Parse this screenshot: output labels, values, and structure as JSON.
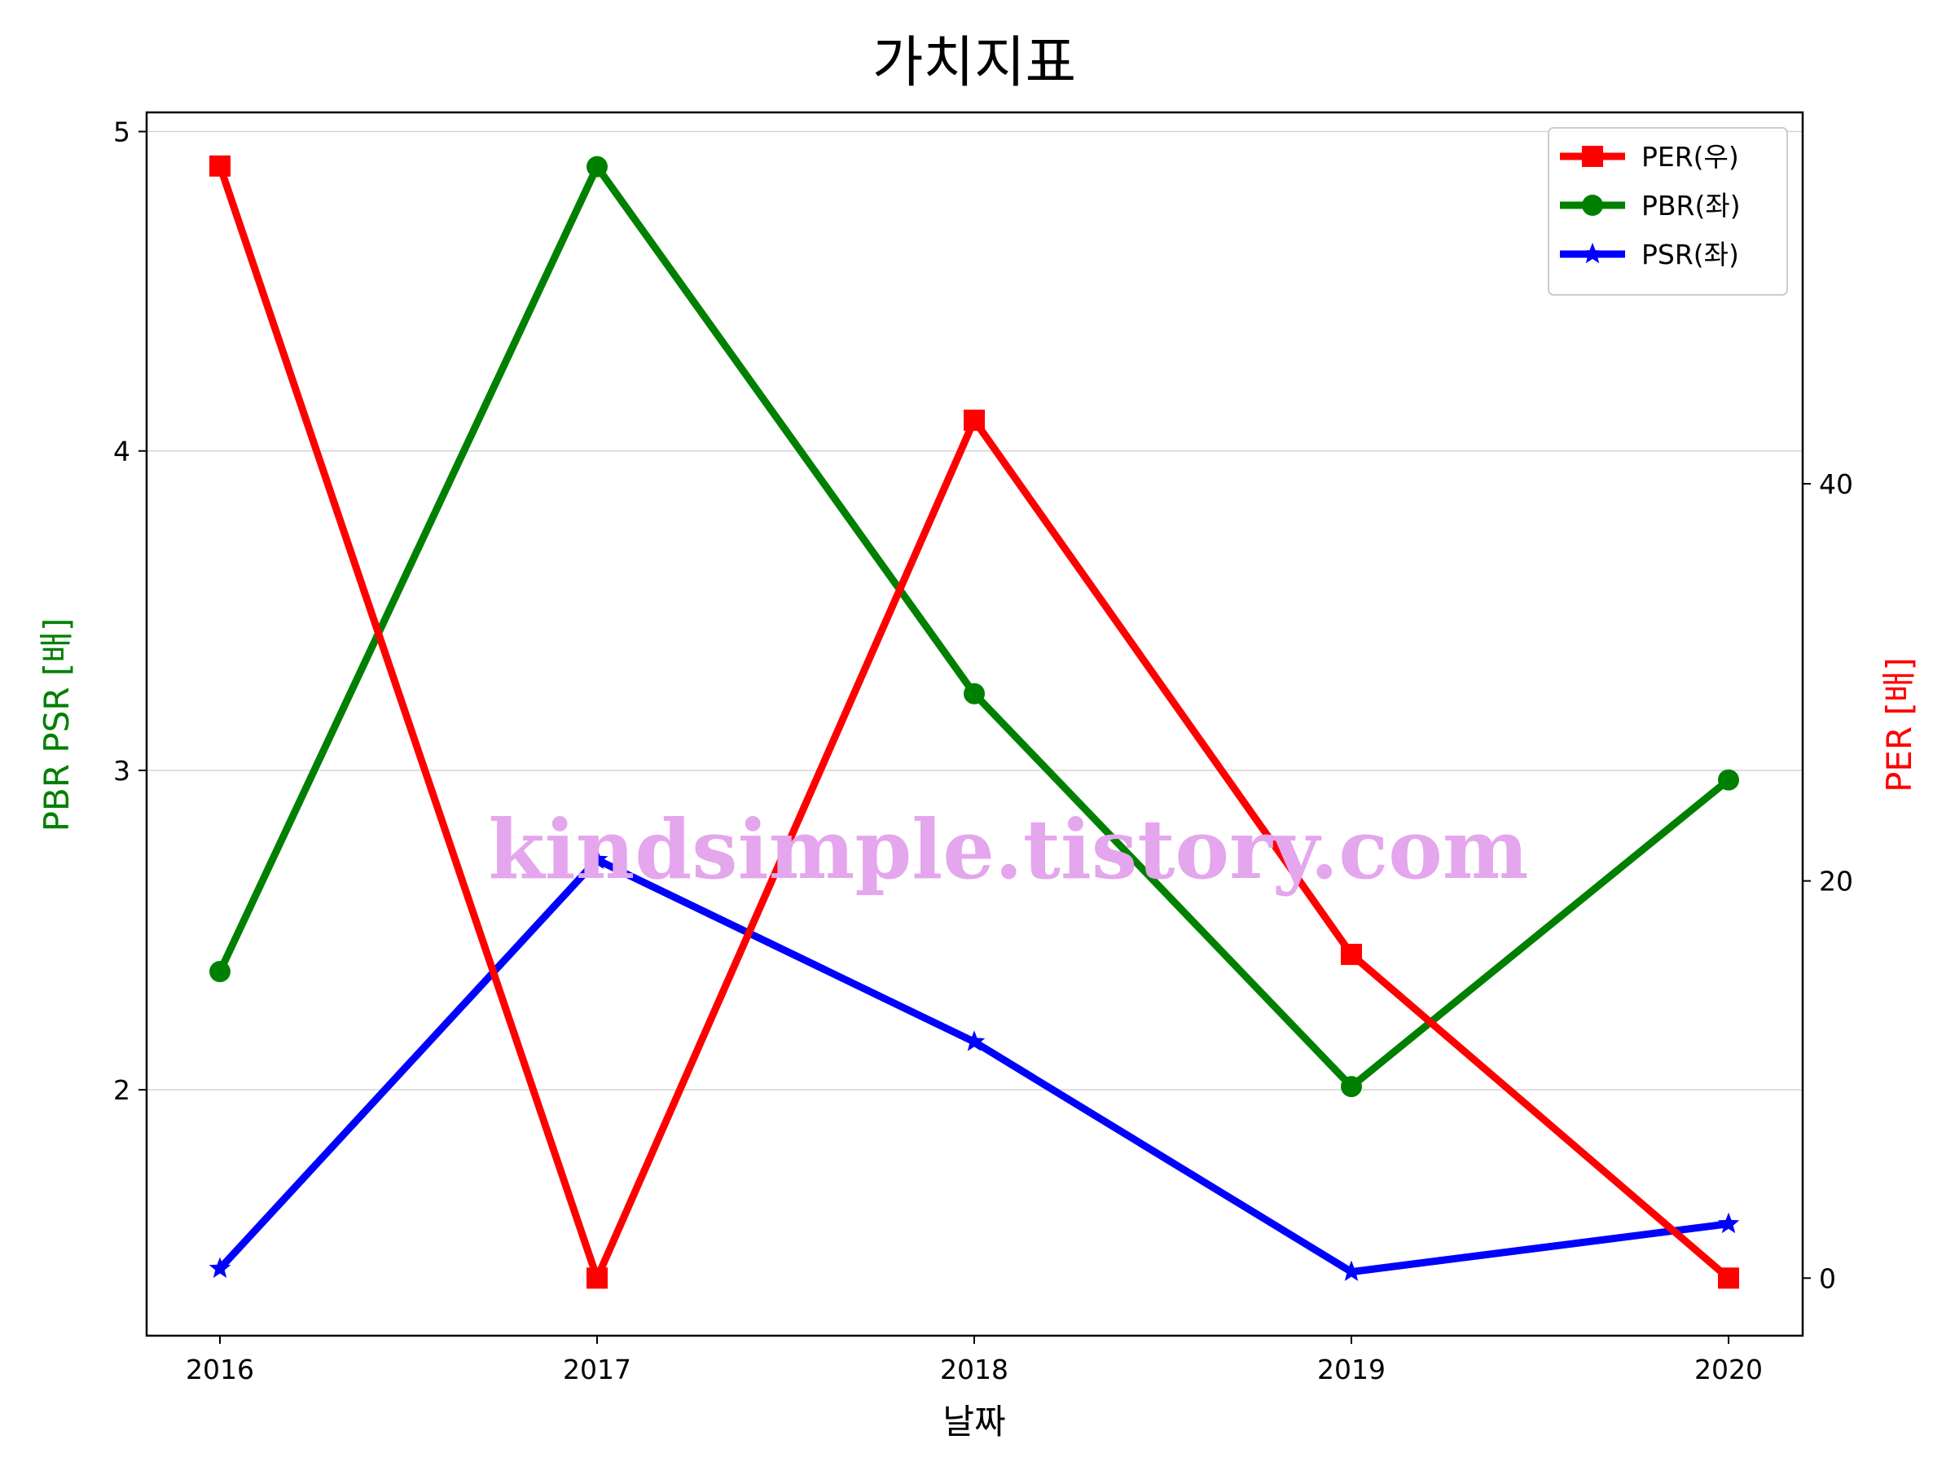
{
  "chart_data": {
    "type": "line",
    "title": "가치지표",
    "xlabel": "날짜",
    "ylabel_left": "PBR PSR [배]",
    "ylabel_right": "PER [배]",
    "categories": [
      "2016",
      "2017",
      "2018",
      "2019",
      "2020"
    ],
    "ylim_left": [
      1.23,
      5.06
    ],
    "yticks_left": [
      2,
      3,
      4,
      5
    ],
    "ylim_right": [
      -2.9,
      58.7
    ],
    "yticks_right": [
      0,
      20,
      40
    ],
    "grid": "horizontal",
    "legend_position": "top-right",
    "series": [
      {
        "name": "PER(우)",
        "axis": "right",
        "color": "#ff0000",
        "marker": "square",
        "values": [
          56.0,
          0.0,
          43.2,
          16.3,
          0.0
        ]
      },
      {
        "name": "PBR(좌)",
        "axis": "left",
        "color": "#008000",
        "marker": "circle",
        "values": [
          2.37,
          4.89,
          3.24,
          2.01,
          2.97
        ]
      },
      {
        "name": "PSR(좌)",
        "axis": "left",
        "color": "#0000ff",
        "marker": "star",
        "values": [
          1.44,
          2.72,
          2.15,
          1.43,
          1.58
        ]
      }
    ],
    "watermark": "kindsimple.tistory.com"
  }
}
